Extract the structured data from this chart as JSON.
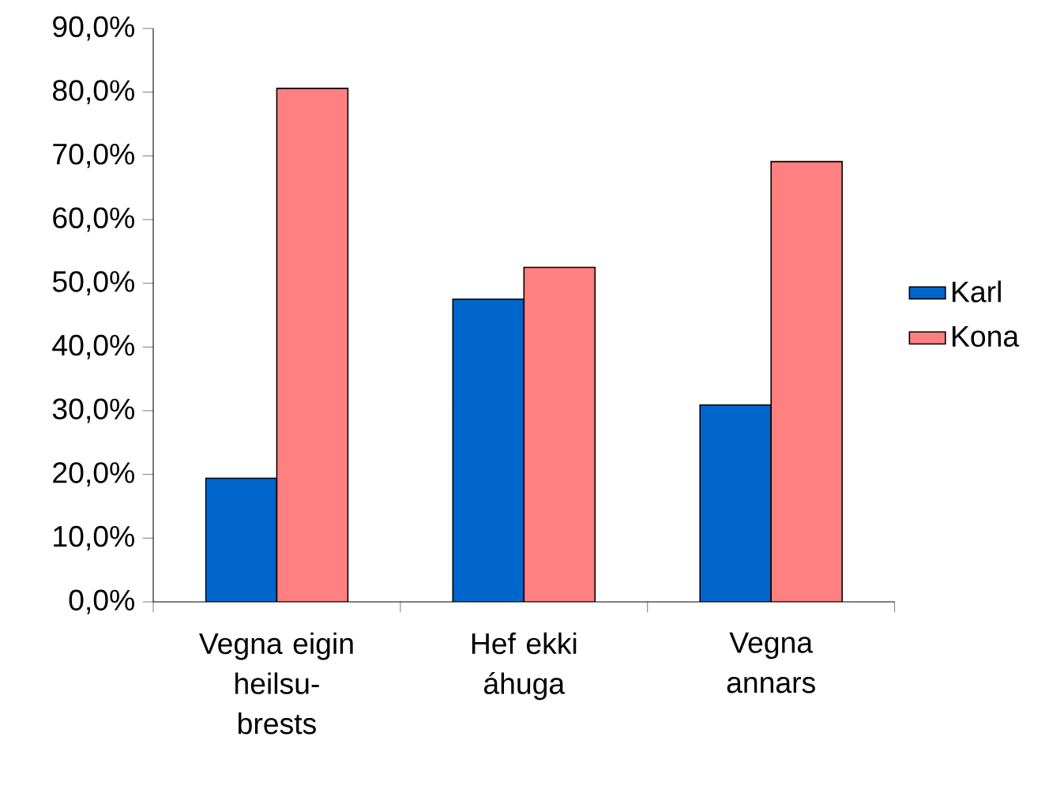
{
  "chart_data": {
    "type": "bar",
    "categories": [
      "Vegna eigin heilsu-brests",
      "Hef ekki áhuga",
      "Vegna annars"
    ],
    "series": [
      {
        "name": "Karl",
        "color": "#0066cc",
        "values": [
          19.4,
          47.5,
          30.9
        ]
      },
      {
        "name": "Kona",
        "color": "#ff8080",
        "values": [
          80.6,
          52.5,
          69.1
        ]
      }
    ],
    "ylim": [
      0,
      90
    ],
    "yticks": [
      {
        "value": 0,
        "label": "0,0%"
      },
      {
        "value": 10,
        "label": "10,0%"
      },
      {
        "value": 20,
        "label": "20,0%"
      },
      {
        "value": 30,
        "label": "30,0%"
      },
      {
        "value": 40,
        "label": "40,0%"
      },
      {
        "value": 50,
        "label": "50,0%"
      },
      {
        "value": 60,
        "label": "60,0%"
      },
      {
        "value": 70,
        "label": "70,0%"
      },
      {
        "value": 80,
        "label": "80,0%"
      },
      {
        "value": 90,
        "label": "90,0%"
      }
    ],
    "grid": false,
    "legend": "right"
  }
}
